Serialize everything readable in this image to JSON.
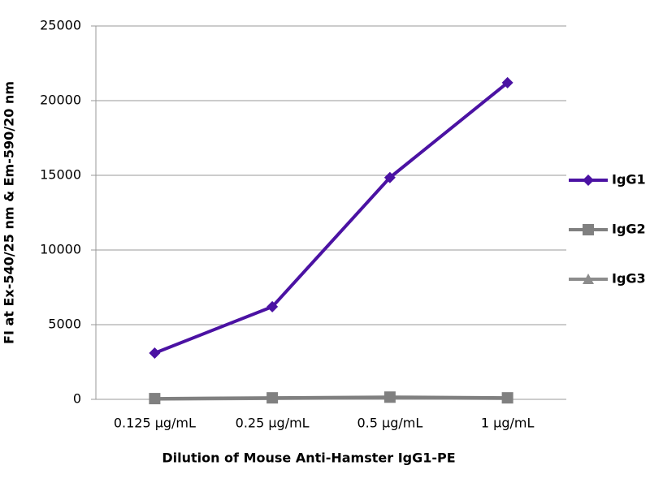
{
  "chart_data": {
    "type": "line",
    "x_label": "Dilution of Mouse Anti-Hamster IgG1-PE",
    "y_label": "FI at Ex-540/25 nm & Em-590/20 nm",
    "categories": [
      "0.125 µg/mL",
      "0.25 µg/mL",
      "0.5 µg/mL",
      "1 µg/mL"
    ],
    "series": [
      {
        "name": "IgG1",
        "color": "#4b12a3",
        "marker": "diamond",
        "values": [
          3100,
          6200,
          14850,
          21200
        ]
      },
      {
        "name": "IgG2",
        "color": "#808080",
        "marker": "square",
        "values": [
          50,
          100,
          150,
          100
        ]
      },
      {
        "name": "IgG3",
        "color": "#8c8c8c",
        "marker": "triangle",
        "values": [
          20,
          60,
          100,
          60
        ]
      }
    ],
    "ylim": [
      0,
      25000
    ],
    "yticks": [
      0,
      5000,
      10000,
      15000,
      20000,
      25000
    ],
    "grid": true,
    "legend": "right"
  }
}
